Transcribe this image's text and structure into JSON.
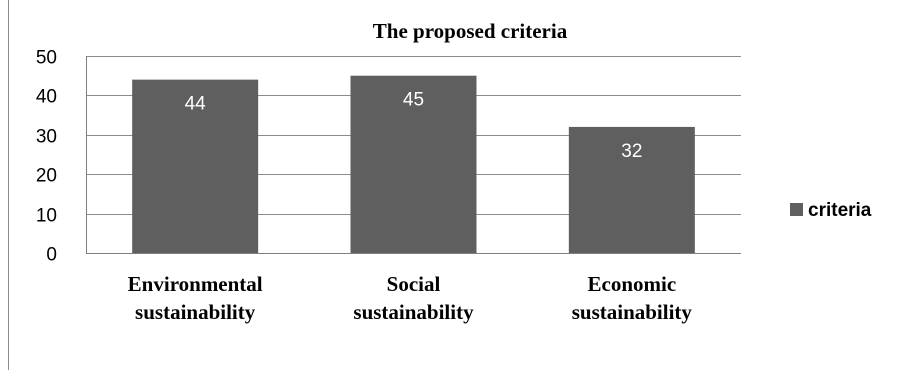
{
  "chart_data": {
    "type": "bar",
    "title": "The proposed criteria",
    "categories": [
      [
        "Environmental",
        "sustainability"
      ],
      [
        "Social",
        "sustainability"
      ],
      [
        "Economic",
        "sustainability"
      ]
    ],
    "series": [
      {
        "name": "criteria",
        "values": [
          44,
          45,
          32
        ],
        "color": "#5f5f5f"
      }
    ],
    "data_labels": [
      "44",
      "45",
      "32"
    ],
    "ylim": [
      0,
      50
    ],
    "yticks": [
      0,
      10,
      20,
      30,
      40,
      50
    ],
    "grid": true,
    "legend_position": "right",
    "colors": {
      "bar": "#5f5f5f",
      "grid": "#8c8c8c",
      "axis": "#7f7f7f",
      "data_label": "#ffffff",
      "text": "#000000"
    }
  }
}
